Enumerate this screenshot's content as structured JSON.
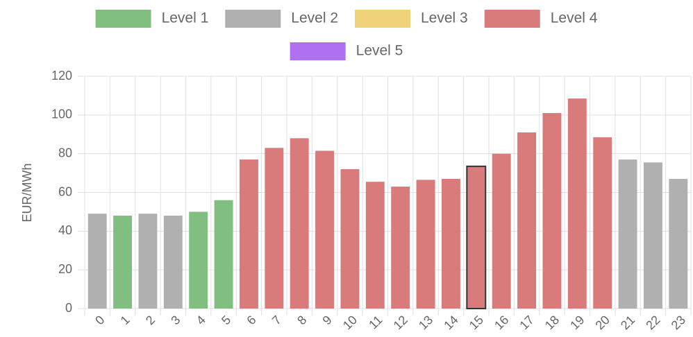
{
  "chart_data": {
    "type": "bar",
    "y_label": "EUR/MWh",
    "categories": [
      "0",
      "1",
      "2",
      "3",
      "4",
      "5",
      "6",
      "7",
      "8",
      "9",
      "10",
      "11",
      "12",
      "13",
      "14",
      "15",
      "16",
      "17",
      "18",
      "19",
      "20",
      "21",
      "22",
      "23"
    ],
    "series": [
      {
        "name": "Level 1",
        "color": "#80bf80",
        "values": [
          null,
          48,
          null,
          null,
          50,
          56,
          null,
          null,
          null,
          null,
          null,
          null,
          null,
          null,
          null,
          null,
          null,
          null,
          null,
          null,
          null,
          null,
          null,
          null
        ]
      },
      {
        "name": "Level 2",
        "color": "#b0b0b0",
        "values": [
          49,
          null,
          49,
          48,
          null,
          null,
          null,
          null,
          null,
          null,
          null,
          null,
          null,
          null,
          null,
          null,
          null,
          null,
          null,
          null,
          null,
          77,
          75.5,
          67
        ]
      },
      {
        "name": "Level 3",
        "color": "#f0d27a",
        "values": [
          null,
          null,
          null,
          null,
          null,
          null,
          null,
          null,
          null,
          null,
          null,
          null,
          null,
          null,
          null,
          null,
          null,
          null,
          null,
          null,
          null,
          null,
          null,
          null
        ]
      },
      {
        "name": "Level 4",
        "color": "#d97b7b",
        "values": [
          null,
          null,
          null,
          null,
          null,
          null,
          77,
          83,
          88,
          81.5,
          72,
          65.5,
          63,
          66.5,
          67,
          73.5,
          80,
          91,
          101,
          108.5,
          88.5,
          null,
          null,
          null
        ]
      },
      {
        "name": "Level 5",
        "color": "#b070f0",
        "values": [
          null,
          null,
          null,
          null,
          null,
          null,
          null,
          null,
          null,
          null,
          null,
          null,
          null,
          null,
          null,
          null,
          null,
          null,
          null,
          null,
          null,
          null,
          null,
          null
        ]
      }
    ],
    "highlight": 15,
    "ylim": [
      0,
      120
    ],
    "yticks": [
      0,
      20,
      40,
      60,
      80,
      100,
      120
    ],
    "grid": true
  }
}
